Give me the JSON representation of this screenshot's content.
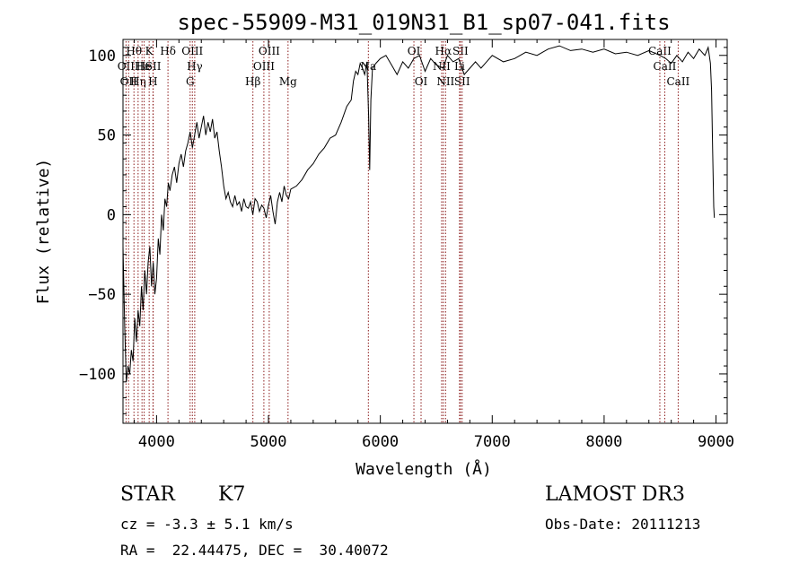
{
  "chart_data": {
    "type": "line",
    "title": "spec-55909-M31_019N31_B1_sp07-041.fits",
    "xlabel": "Wavelength (Å)",
    "ylabel": "Flux (relative)",
    "xlim": [
      3700,
      9100
    ],
    "ylim": [
      -131,
      110
    ],
    "xticks": [
      4000,
      5000,
      6000,
      7000,
      8000,
      9000
    ],
    "yticks": [
      -100,
      -50,
      0,
      50,
      100
    ],
    "grid": false,
    "series": [
      {
        "points": [
          [
            3700,
            -20
          ],
          [
            3715,
            -70
          ],
          [
            3730,
            -105
          ],
          [
            3745,
            -95
          ],
          [
            3760,
            -100
          ],
          [
            3775,
            -85
          ],
          [
            3790,
            -92
          ],
          [
            3805,
            -65
          ],
          [
            3820,
            -80
          ],
          [
            3835,
            -60
          ],
          [
            3850,
            -70
          ],
          [
            3865,
            -45
          ],
          [
            3880,
            -60
          ],
          [
            3895,
            -35
          ],
          [
            3910,
            -50
          ],
          [
            3925,
            -30
          ],
          [
            3940,
            -20
          ],
          [
            3955,
            -45
          ],
          [
            3970,
            -30
          ],
          [
            3985,
            -50
          ],
          [
            4000,
            -40
          ],
          [
            4015,
            -15
          ],
          [
            4030,
            -25
          ],
          [
            4045,
            0
          ],
          [
            4060,
            -10
          ],
          [
            4075,
            10
          ],
          [
            4090,
            5
          ],
          [
            4105,
            20
          ],
          [
            4120,
            15
          ],
          [
            4140,
            25
          ],
          [
            4160,
            30
          ],
          [
            4180,
            20
          ],
          [
            4200,
            32
          ],
          [
            4220,
            38
          ],
          [
            4240,
            30
          ],
          [
            4260,
            40
          ],
          [
            4280,
            45
          ],
          [
            4300,
            52
          ],
          [
            4320,
            42
          ],
          [
            4340,
            50
          ],
          [
            4360,
            58
          ],
          [
            4380,
            48
          ],
          [
            4400,
            55
          ],
          [
            4420,
            62
          ],
          [
            4440,
            50
          ],
          [
            4460,
            58
          ],
          [
            4480,
            52
          ],
          [
            4500,
            60
          ],
          [
            4520,
            48
          ],
          [
            4540,
            52
          ],
          [
            4560,
            40
          ],
          [
            4580,
            30
          ],
          [
            4600,
            18
          ],
          [
            4620,
            10
          ],
          [
            4640,
            14
          ],
          [
            4660,
            8
          ],
          [
            4680,
            5
          ],
          [
            4700,
            12
          ],
          [
            4720,
            6
          ],
          [
            4740,
            8
          ],
          [
            4760,
            2
          ],
          [
            4780,
            10
          ],
          [
            4800,
            5
          ],
          [
            4820,
            4
          ],
          [
            4840,
            8
          ],
          [
            4860,
            0
          ],
          [
            4880,
            10
          ],
          [
            4900,
            8
          ],
          [
            4920,
            2
          ],
          [
            4940,
            6
          ],
          [
            4960,
            4
          ],
          [
            4980,
            -2
          ],
          [
            5000,
            6
          ],
          [
            5020,
            12
          ],
          [
            5040,
            2
          ],
          [
            5060,
            -6
          ],
          [
            5080,
            8
          ],
          [
            5100,
            14
          ],
          [
            5120,
            8
          ],
          [
            5140,
            18
          ],
          [
            5160,
            12
          ],
          [
            5180,
            10
          ],
          [
            5200,
            16
          ],
          [
            5250,
            18
          ],
          [
            5300,
            22
          ],
          [
            5350,
            28
          ],
          [
            5400,
            32
          ],
          [
            5450,
            38
          ],
          [
            5500,
            42
          ],
          [
            5550,
            48
          ],
          [
            5600,
            50
          ],
          [
            5650,
            58
          ],
          [
            5700,
            68
          ],
          [
            5740,
            72
          ],
          [
            5760,
            84
          ],
          [
            5780,
            90
          ],
          [
            5800,
            88
          ],
          [
            5820,
            95
          ],
          [
            5840,
            92
          ],
          [
            5860,
            88
          ],
          [
            5880,
            96
          ],
          [
            5895,
            62
          ],
          [
            5905,
            28
          ],
          [
            5915,
            72
          ],
          [
            5930,
            92
          ],
          [
            5960,
            95
          ],
          [
            6000,
            98
          ],
          [
            6050,
            100
          ],
          [
            6100,
            94
          ],
          [
            6150,
            88
          ],
          [
            6200,
            96
          ],
          [
            6250,
            92
          ],
          [
            6300,
            98
          ],
          [
            6350,
            100
          ],
          [
            6400,
            90
          ],
          [
            6450,
            98
          ],
          [
            6500,
            94
          ],
          [
            6560,
            92
          ],
          [
            6600,
            100
          ],
          [
            6650,
            96
          ],
          [
            6700,
            98
          ],
          [
            6750,
            88
          ],
          [
            6800,
            92
          ],
          [
            6850,
            96
          ],
          [
            6900,
            92
          ],
          [
            6950,
            96
          ],
          [
            7000,
            100
          ],
          [
            7100,
            96
          ],
          [
            7200,
            98
          ],
          [
            7300,
            102
          ],
          [
            7400,
            100
          ],
          [
            7500,
            104
          ],
          [
            7600,
            106
          ],
          [
            7700,
            103
          ],
          [
            7800,
            104
          ],
          [
            7900,
            102
          ],
          [
            8000,
            104
          ],
          [
            8100,
            101
          ],
          [
            8200,
            102
          ],
          [
            8300,
            100
          ],
          [
            8400,
            103
          ],
          [
            8500,
            100
          ],
          [
            8550,
            98
          ],
          [
            8600,
            95
          ],
          [
            8650,
            100
          ],
          [
            8700,
            96
          ],
          [
            8750,
            102
          ],
          [
            8800,
            98
          ],
          [
            8850,
            104
          ],
          [
            8900,
            100
          ],
          [
            8930,
            105
          ],
          [
            8950,
            95
          ],
          [
            8960,
            78
          ],
          [
            8970,
            40
          ],
          [
            8980,
            5
          ],
          [
            8985,
            -2
          ]
        ]
      }
    ],
    "lines": [
      {
        "wl": 3727,
        "label": "OII",
        "row": 1
      },
      {
        "wl": 3750,
        "label": "OII",
        "row": 2
      },
      {
        "wl": 3798,
        "label": "Hθ",
        "row": 0
      },
      {
        "wl": 3835,
        "label": "Hη",
        "row": 2
      },
      {
        "wl": 3870,
        "label": "Hε",
        "row": 1
      },
      {
        "wl": 3889,
        "label": "He",
        "row": 1
      },
      {
        "wl": 3934,
        "label": "K",
        "row": 0
      },
      {
        "wl": 3968,
        "label": "H",
        "row": 2
      },
      {
        "wl": 3970,
        "label": "SII",
        "row": 1
      },
      {
        "wl": 4102,
        "label": "Hδ",
        "row": 0
      },
      {
        "wl": 4300,
        "label": "G",
        "row": 2
      },
      {
        "wl": 4320,
        "label": "OIII",
        "row": 0
      },
      {
        "wl": 4341,
        "label": "Hγ",
        "row": 1
      },
      {
        "wl": 4861,
        "label": "Hβ",
        "row": 2
      },
      {
        "wl": 4959,
        "label": "OIII",
        "row": 1
      },
      {
        "wl": 5007,
        "label": "OIII",
        "row": 0
      },
      {
        "wl": 5175,
        "label": "Mg",
        "row": 2
      },
      {
        "wl": 5893,
        "label": "Na",
        "row": 1
      },
      {
        "wl": 6300,
        "label": "OI",
        "row": 0
      },
      {
        "wl": 6364,
        "label": "OI",
        "row": 2
      },
      {
        "wl": 6548,
        "label": "NII",
        "row": 1
      },
      {
        "wl": 6563,
        "label": "Hα",
        "row": 0
      },
      {
        "wl": 6583,
        "label": "NII",
        "row": 2
      },
      {
        "wl": 6716,
        "label": "SII",
        "row": 0
      },
      {
        "wl": 6731,
        "label": "SII",
        "row": 2
      },
      {
        "wl": 6708,
        "label": "Li",
        "row": 1
      },
      {
        "wl": 8498,
        "label": "CaII",
        "row": 0
      },
      {
        "wl": 8542,
        "label": "CaII",
        "row": 1
      },
      {
        "wl": 8662,
        "label": "CaII",
        "row": 2
      }
    ]
  },
  "info": {
    "class": "STAR",
    "subclass": "K7",
    "survey": "LAMOST DR3",
    "velocity": "cz = -3.3 ± 5.1 km/s",
    "obsdate": "Obs-Date: 20111213",
    "coords": "RA =  22.44475, DEC =  30.40072"
  },
  "colors": {
    "spectrum": "#000000",
    "linemarker": "#8b1a1a"
  }
}
